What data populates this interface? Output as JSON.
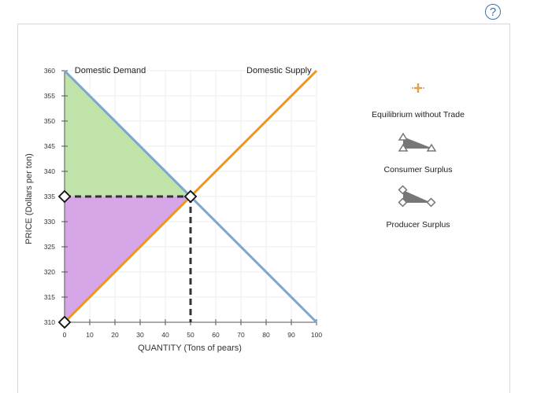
{
  "help_label": "?",
  "chart_data": {
    "type": "line",
    "xlabel": "QUANTITY (Tons of pears)",
    "ylabel": "PRICE (Dollars per ton)",
    "xlim": [
      0,
      100
    ],
    "ylim": [
      310,
      360
    ],
    "x_ticks": [
      0,
      10,
      20,
      30,
      40,
      50,
      60,
      70,
      80,
      90,
      100
    ],
    "y_ticks": [
      310,
      315,
      320,
      325,
      330,
      335,
      340,
      345,
      350,
      355,
      360
    ],
    "grid": true,
    "series": [
      {
        "name": "Domestic Demand",
        "color": "#7ea6cf",
        "points": [
          [
            0,
            360
          ],
          [
            100,
            310
          ]
        ]
      },
      {
        "name": "Domestic Supply",
        "color": "#f0961c",
        "points": [
          [
            0,
            310
          ],
          [
            100,
            360
          ]
        ]
      }
    ],
    "equilibrium": {
      "x": 50,
      "y": 335
    },
    "consumer_surplus": {
      "color": "#bfe3a8",
      "points": [
        [
          0,
          360
        ],
        [
          0,
          335
        ],
        [
          50,
          335
        ]
      ]
    },
    "producer_surplus": {
      "color": "#d6a6e6",
      "points": [
        [
          0,
          335
        ],
        [
          0,
          310
        ],
        [
          50,
          335
        ]
      ]
    }
  },
  "legend": {
    "equilibrium_label": "Equilibrium without Trade",
    "consumer_surplus_label": "Consumer Surplus",
    "producer_surplus_label": "Producer Surplus"
  }
}
